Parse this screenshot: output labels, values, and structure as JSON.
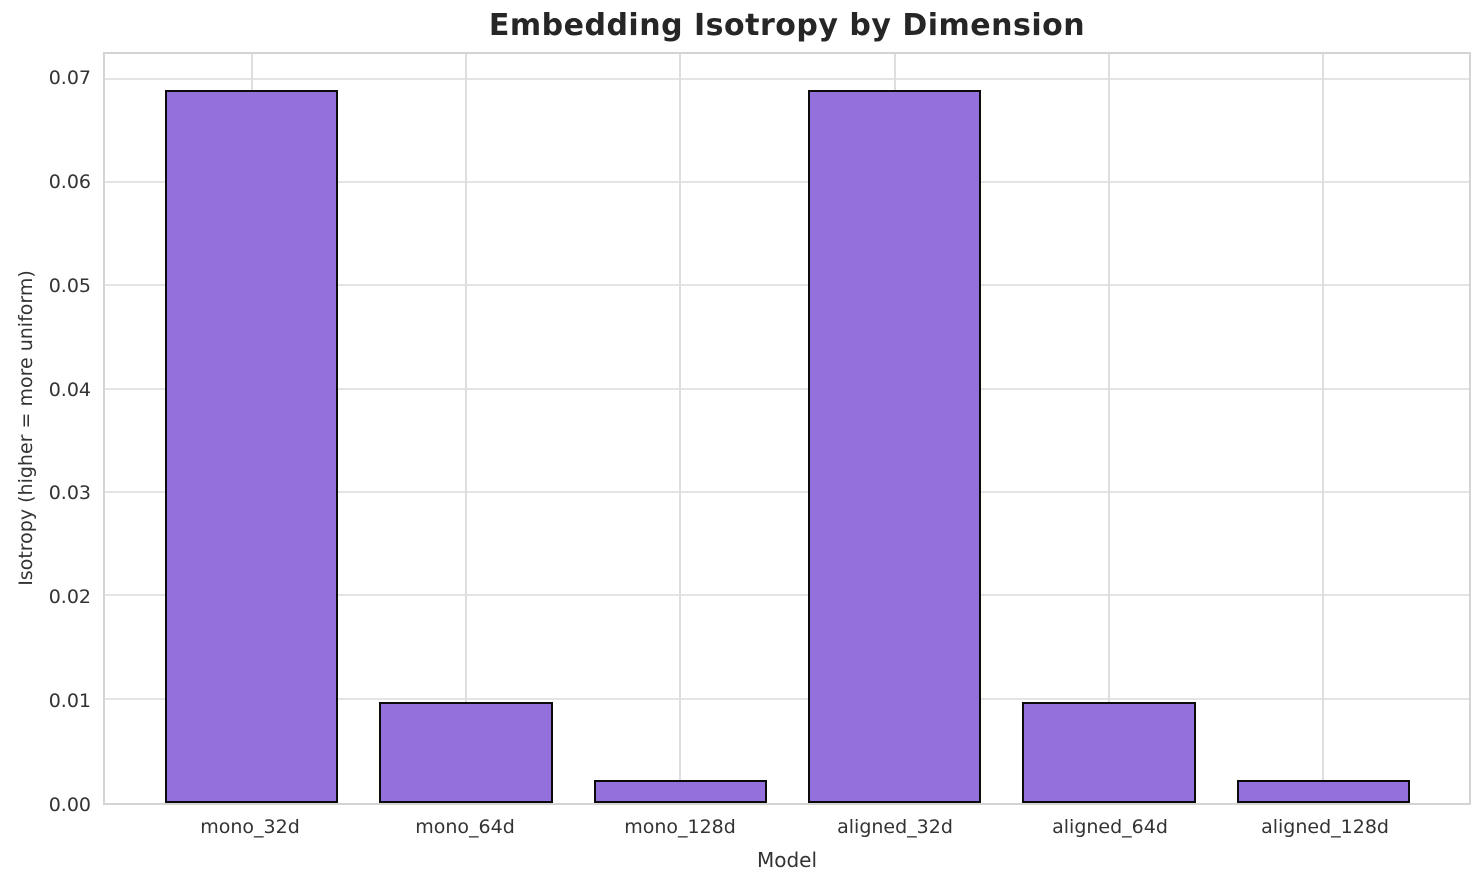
{
  "chart_data": {
    "type": "bar",
    "title": "Embedding Isotropy by Dimension",
    "xlabel": "Model",
    "ylabel": "Isotropy (higher = more uniform)",
    "categories": [
      "mono_32d",
      "mono_64d",
      "mono_128d",
      "aligned_32d",
      "aligned_64d",
      "aligned_128d"
    ],
    "values": [
      0.069,
      0.0098,
      0.0022,
      0.069,
      0.0098,
      0.0022
    ],
    "ylim": [
      0,
      0.0725
    ],
    "yticks": [
      0.0,
      0.01,
      0.02,
      0.03,
      0.04,
      0.05,
      0.06,
      0.07
    ],
    "ytick_labels": [
      "0.00",
      "0.01",
      "0.02",
      "0.03",
      "0.04",
      "0.05",
      "0.06",
      "0.07"
    ],
    "grid": true,
    "legend": null,
    "bar_color": "#9370DB",
    "bar_edge_color": "#0b0b0b",
    "grid_color": "#e4e4e4",
    "spine_color": "#d4d4d4",
    "text_color": "#333333",
    "title_color": "#262626",
    "background_color": "#ffffff"
  }
}
